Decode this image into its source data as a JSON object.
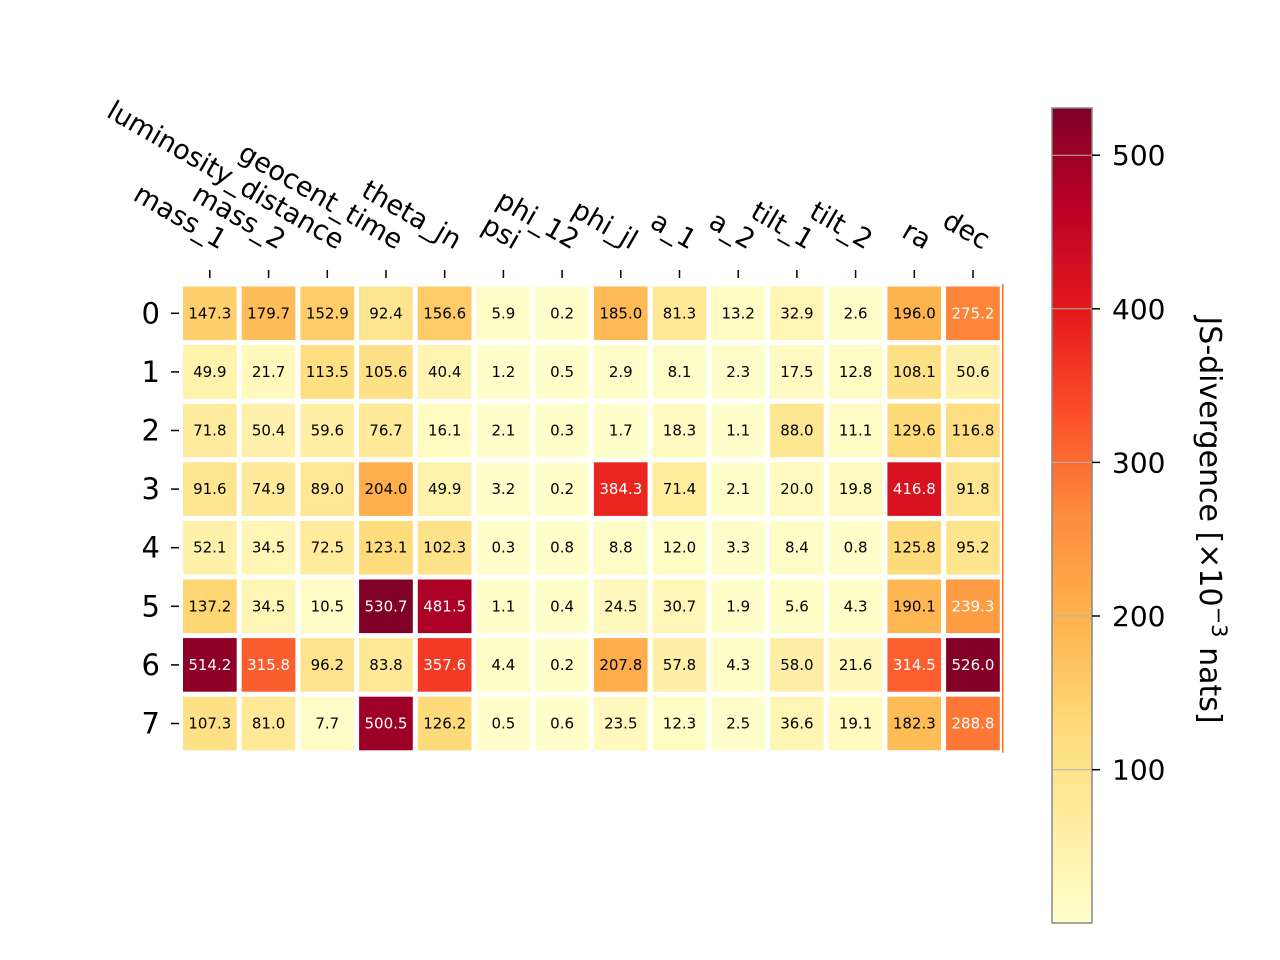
{
  "chart_data": {
    "type": "heatmap",
    "colormap": "YlOrRd",
    "columns": [
      "mass_1",
      "mass_2",
      "luminosity_distance",
      "geocent_time",
      "theta_jn",
      "psi",
      "phi_12",
      "phi_jl",
      "a_1",
      "a_2",
      "tilt_1",
      "tilt_2",
      "ra",
      "dec"
    ],
    "rows": [
      "0",
      "1",
      "2",
      "3",
      "4",
      "5",
      "6",
      "7"
    ],
    "values": [
      [
        147.3,
        179.7,
        152.9,
        92.4,
        156.6,
        5.9,
        0.2,
        185.0,
        81.3,
        13.2,
        32.9,
        2.6,
        196.0,
        275.2
      ],
      [
        49.9,
        21.7,
        113.5,
        105.6,
        40.4,
        1.2,
        0.5,
        2.9,
        8.1,
        2.3,
        17.5,
        12.8,
        108.1,
        50.6
      ],
      [
        71.8,
        50.4,
        59.6,
        76.7,
        16.1,
        2.1,
        0.3,
        1.7,
        18.3,
        1.1,
        88.0,
        11.1,
        129.6,
        116.8
      ],
      [
        91.6,
        74.9,
        89.0,
        204.0,
        49.9,
        3.2,
        0.2,
        384.3,
        71.4,
        2.1,
        20.0,
        19.8,
        416.8,
        91.8
      ],
      [
        52.1,
        34.5,
        72.5,
        123.1,
        102.3,
        0.3,
        0.8,
        8.8,
        12.0,
        3.3,
        8.4,
        0.8,
        125.8,
        95.2
      ],
      [
        137.2,
        34.5,
        10.5,
        530.7,
        481.5,
        1.1,
        0.4,
        24.5,
        30.7,
        1.9,
        5.6,
        4.3,
        190.1,
        239.3
      ],
      [
        514.2,
        315.8,
        96.2,
        83.8,
        357.6,
        4.4,
        0.2,
        207.8,
        57.8,
        4.3,
        58.0,
        21.6,
        314.5,
        526.0
      ],
      [
        107.3,
        81.0,
        7.7,
        500.5,
        126.2,
        0.5,
        0.6,
        23.5,
        12.3,
        2.5,
        36.6,
        19.1,
        182.3,
        288.8
      ]
    ],
    "colorbar": {
      "label_main": "JS-divergence [×10",
      "label_exp": "−3",
      "label_unit": " nats]",
      "ticks": [
        100,
        200,
        300,
        400,
        500
      ],
      "range": [
        0.2,
        530.7
      ]
    }
  }
}
